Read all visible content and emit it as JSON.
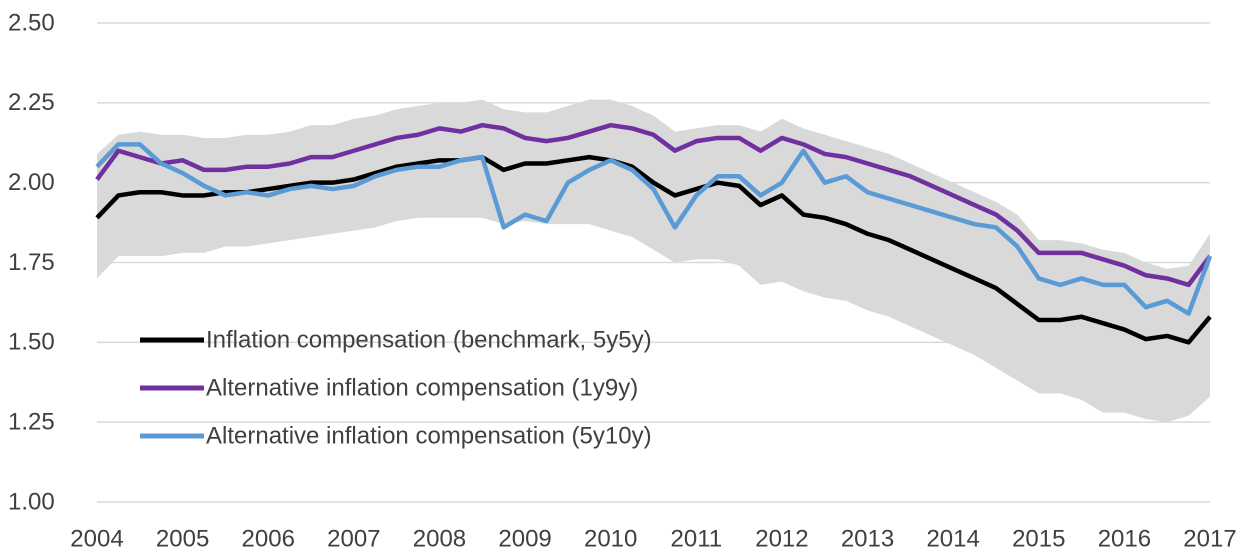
{
  "chart_data": {
    "type": "line",
    "x": [
      2004,
      2004.25,
      2004.5,
      2004.75,
      2005,
      2005.25,
      2005.5,
      2005.75,
      2006,
      2006.25,
      2006.5,
      2006.75,
      2007,
      2007.25,
      2007.5,
      2007.75,
      2008,
      2008.25,
      2008.5,
      2008.75,
      2009,
      2009.25,
      2009.5,
      2009.75,
      2010,
      2010.25,
      2010.5,
      2010.75,
      2011,
      2011.25,
      2011.5,
      2011.75,
      2012,
      2012.25,
      2012.5,
      2012.75,
      2013,
      2013.25,
      2013.5,
      2013.75,
      2014,
      2014.25,
      2014.5,
      2014.75,
      2015,
      2015.25,
      2015.5,
      2015.75,
      2016,
      2016.25,
      2016.5,
      2016.75,
      2017
    ],
    "band": {
      "color": "#d9d9d9",
      "upper": [
        2.09,
        2.15,
        2.16,
        2.15,
        2.15,
        2.14,
        2.14,
        2.15,
        2.15,
        2.16,
        2.18,
        2.18,
        2.2,
        2.21,
        2.23,
        2.24,
        2.25,
        2.25,
        2.26,
        2.23,
        2.22,
        2.22,
        2.24,
        2.26,
        2.26,
        2.24,
        2.21,
        2.16,
        2.17,
        2.18,
        2.18,
        2.16,
        2.2,
        2.17,
        2.15,
        2.13,
        2.11,
        2.09,
        2.06,
        2.03,
        2.0,
        1.97,
        1.94,
        1.9,
        1.82,
        1.82,
        1.81,
        1.79,
        1.78,
        1.75,
        1.73,
        1.74,
        1.84
      ],
      "lower": [
        1.7,
        1.77,
        1.77,
        1.77,
        1.78,
        1.78,
        1.8,
        1.8,
        1.81,
        1.82,
        1.83,
        1.84,
        1.85,
        1.86,
        1.88,
        1.89,
        1.89,
        1.89,
        1.89,
        1.87,
        1.88,
        1.87,
        1.87,
        1.87,
        1.85,
        1.83,
        1.79,
        1.75,
        1.76,
        1.76,
        1.74,
        1.68,
        1.69,
        1.66,
        1.64,
        1.63,
        1.6,
        1.58,
        1.55,
        1.52,
        1.49,
        1.46,
        1.42,
        1.38,
        1.34,
        1.34,
        1.32,
        1.28,
        1.28,
        1.26,
        1.25,
        1.27,
        1.33
      ]
    },
    "series": [
      {
        "name": "Inflation compensation (benchmark, 5y5y)",
        "color": "#000000",
        "values": [
          1.89,
          1.96,
          1.97,
          1.97,
          1.96,
          1.96,
          1.97,
          1.97,
          1.98,
          1.99,
          2.0,
          2.0,
          2.01,
          2.03,
          2.05,
          2.06,
          2.07,
          2.07,
          2.08,
          2.04,
          2.06,
          2.06,
          2.07,
          2.08,
          2.07,
          2.05,
          2.0,
          1.96,
          1.98,
          2.0,
          1.99,
          1.93,
          1.96,
          1.9,
          1.89,
          1.87,
          1.84,
          1.82,
          1.79,
          1.76,
          1.73,
          1.7,
          1.67,
          1.62,
          1.57,
          1.57,
          1.58,
          1.56,
          1.54,
          1.51,
          1.52,
          1.5,
          1.58
        ]
      },
      {
        "name": "Alternative inflation compensation (1y9y)",
        "color": "#7030a0",
        "values": [
          2.01,
          2.1,
          2.08,
          2.06,
          2.07,
          2.04,
          2.04,
          2.05,
          2.05,
          2.06,
          2.08,
          2.08,
          2.1,
          2.12,
          2.14,
          2.15,
          2.17,
          2.16,
          2.18,
          2.17,
          2.14,
          2.13,
          2.14,
          2.16,
          2.18,
          2.17,
          2.15,
          2.1,
          2.13,
          2.14,
          2.14,
          2.1,
          2.14,
          2.12,
          2.09,
          2.08,
          2.06,
          2.04,
          2.02,
          1.99,
          1.96,
          1.93,
          1.9,
          1.85,
          1.78,
          1.78,
          1.78,
          1.76,
          1.74,
          1.71,
          1.7,
          1.68,
          1.77
        ]
      },
      {
        "name": "Alternative inflation compensation (5y10y)",
        "color": "#5b9bd5",
        "values": [
          2.05,
          2.12,
          2.12,
          2.06,
          2.03,
          1.99,
          1.96,
          1.97,
          1.96,
          1.98,
          1.99,
          1.98,
          1.99,
          2.02,
          2.04,
          2.05,
          2.05,
          2.07,
          2.08,
          1.86,
          1.9,
          1.88,
          2.0,
          2.04,
          2.07,
          2.04,
          1.98,
          1.86,
          1.96,
          2.02,
          2.02,
          1.96,
          2.0,
          2.1,
          2.0,
          2.02,
          1.97,
          1.95,
          1.93,
          1.91,
          1.89,
          1.87,
          1.86,
          1.8,
          1.7,
          1.68,
          1.7,
          1.68,
          1.68,
          1.61,
          1.63,
          1.59,
          1.77
        ]
      }
    ],
    "xlim": [
      2004,
      2017
    ],
    "xticks": [
      2004,
      2005,
      2006,
      2007,
      2008,
      2009,
      2010,
      2011,
      2012,
      2013,
      2014,
      2015,
      2016,
      2017
    ],
    "ylim": [
      1,
      2.5
    ],
    "yticks": [
      {
        "value": 1,
        "label": "1.00"
      },
      1.25,
      {
        "value": 1.5,
        "label": "1.50"
      },
      1.75,
      {
        "value": 2,
        "label": "2.00"
      },
      2.25,
      {
        "value": 2.5,
        "label": "2.50"
      }
    ],
    "grid": true,
    "legend": "lower left"
  }
}
